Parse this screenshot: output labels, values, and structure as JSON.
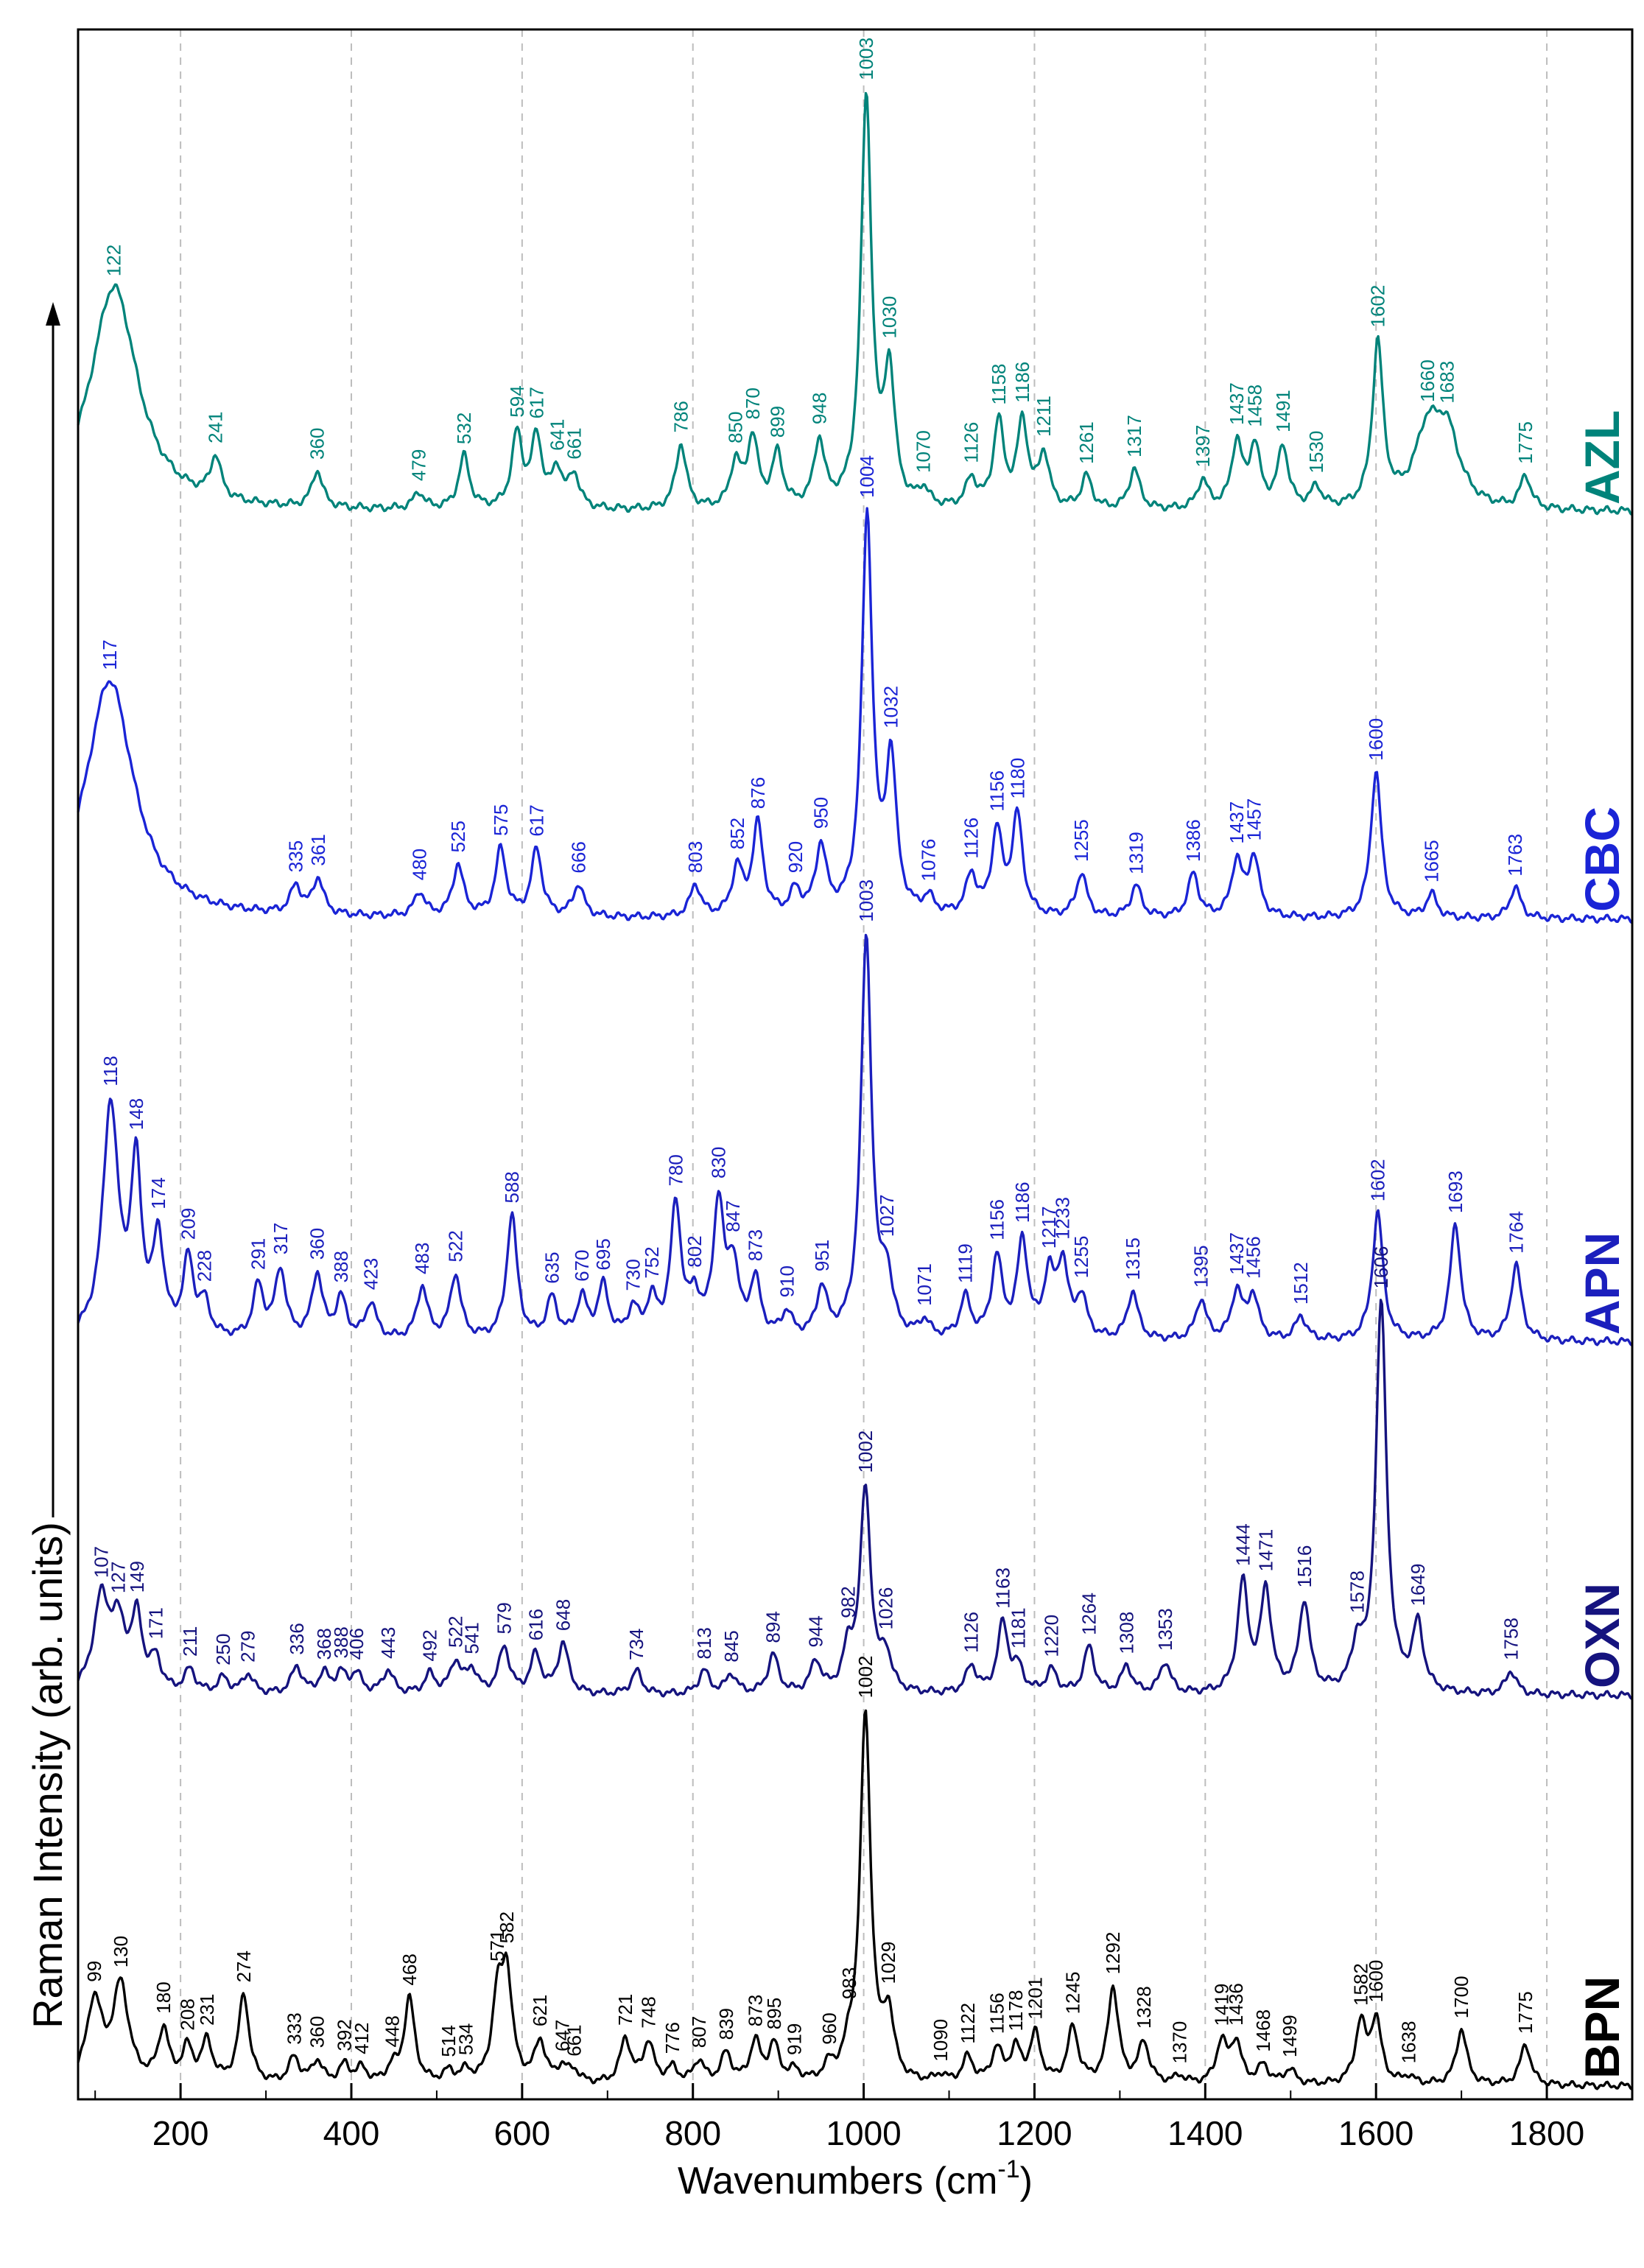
{
  "chart_data": {
    "type": "line",
    "title": "",
    "xlabel": "Wavenumbers (cm",
    "xlabel_sup": "-1",
    "xlabel_close": ")",
    "ylabel": "Raman Intensity (arb. units)",
    "xlim": [
      80,
      1900
    ],
    "x_ticks": [
      200,
      400,
      600,
      800,
      1000,
      1200,
      1400,
      1600,
      1800
    ],
    "grid": "dashed vertical at major ticks",
    "series": [
      {
        "name": "AZL",
        "color": "#00837a",
        "peaks": [
          122,
          241,
          360,
          479,
          532,
          594,
          617,
          641,
          661,
          786,
          850,
          870,
          899,
          948,
          1003,
          1030,
          1070,
          1126,
          1158,
          1186,
          1211,
          1261,
          1317,
          1397,
          1437,
          1458,
          1491,
          1530,
          1602,
          1660,
          1683,
          1775
        ]
      },
      {
        "name": "CBC",
        "color": "#1a24d6",
        "peaks": [
          117,
          335,
          361,
          480,
          525,
          575,
          617,
          666,
          803,
          852,
          876,
          920,
          950,
          1004,
          1032,
          1076,
          1126,
          1156,
          1180,
          1255,
          1319,
          1386,
          1437,
          1457,
          1600,
          1665,
          1763
        ]
      },
      {
        "name": "APN",
        "color": "#1b1fbd",
        "peaks": [
          118,
          148,
          174,
          209,
          228,
          291,
          317,
          360,
          388,
          423,
          483,
          522,
          588,
          635,
          670,
          695,
          730,
          752,
          780,
          802,
          830,
          847,
          873,
          910,
          951,
          1003,
          1027,
          1071,
          1119,
          1156,
          1186,
          1217,
          1233,
          1255,
          1315,
          1395,
          1437,
          1456,
          1512,
          1602,
          1693,
          1764
        ]
      },
      {
        "name": "OXN",
        "color": "#15137e",
        "peaks": [
          107,
          127,
          149,
          171,
          211,
          250,
          279,
          336,
          368,
          388,
          406,
          443,
          492,
          522,
          541,
          579,
          616,
          648,
          734,
          813,
          845,
          894,
          944,
          982,
          1002,
          1026,
          1126,
          1163,
          1181,
          1220,
          1264,
          1308,
          1353,
          1444,
          1471,
          1516,
          1578,
          1606,
          1649,
          1758
        ]
      },
      {
        "name": "BPN",
        "color": "#000000",
        "peaks": [
          99,
          130,
          180,
          208,
          231,
          274,
          333,
          360,
          392,
          412,
          448,
          468,
          514,
          534,
          571,
          582,
          621,
          647,
          661,
          721,
          748,
          776,
          807,
          839,
          873,
          895,
          919,
          960,
          983,
          1002,
          1029,
          1090,
          1122,
          1156,
          1178,
          1201,
          1245,
          1292,
          1328,
          1370,
          1419,
          1436,
          1468,
          1499,
          1582,
          1600,
          1638,
          1700,
          1775
        ]
      }
    ]
  }
}
